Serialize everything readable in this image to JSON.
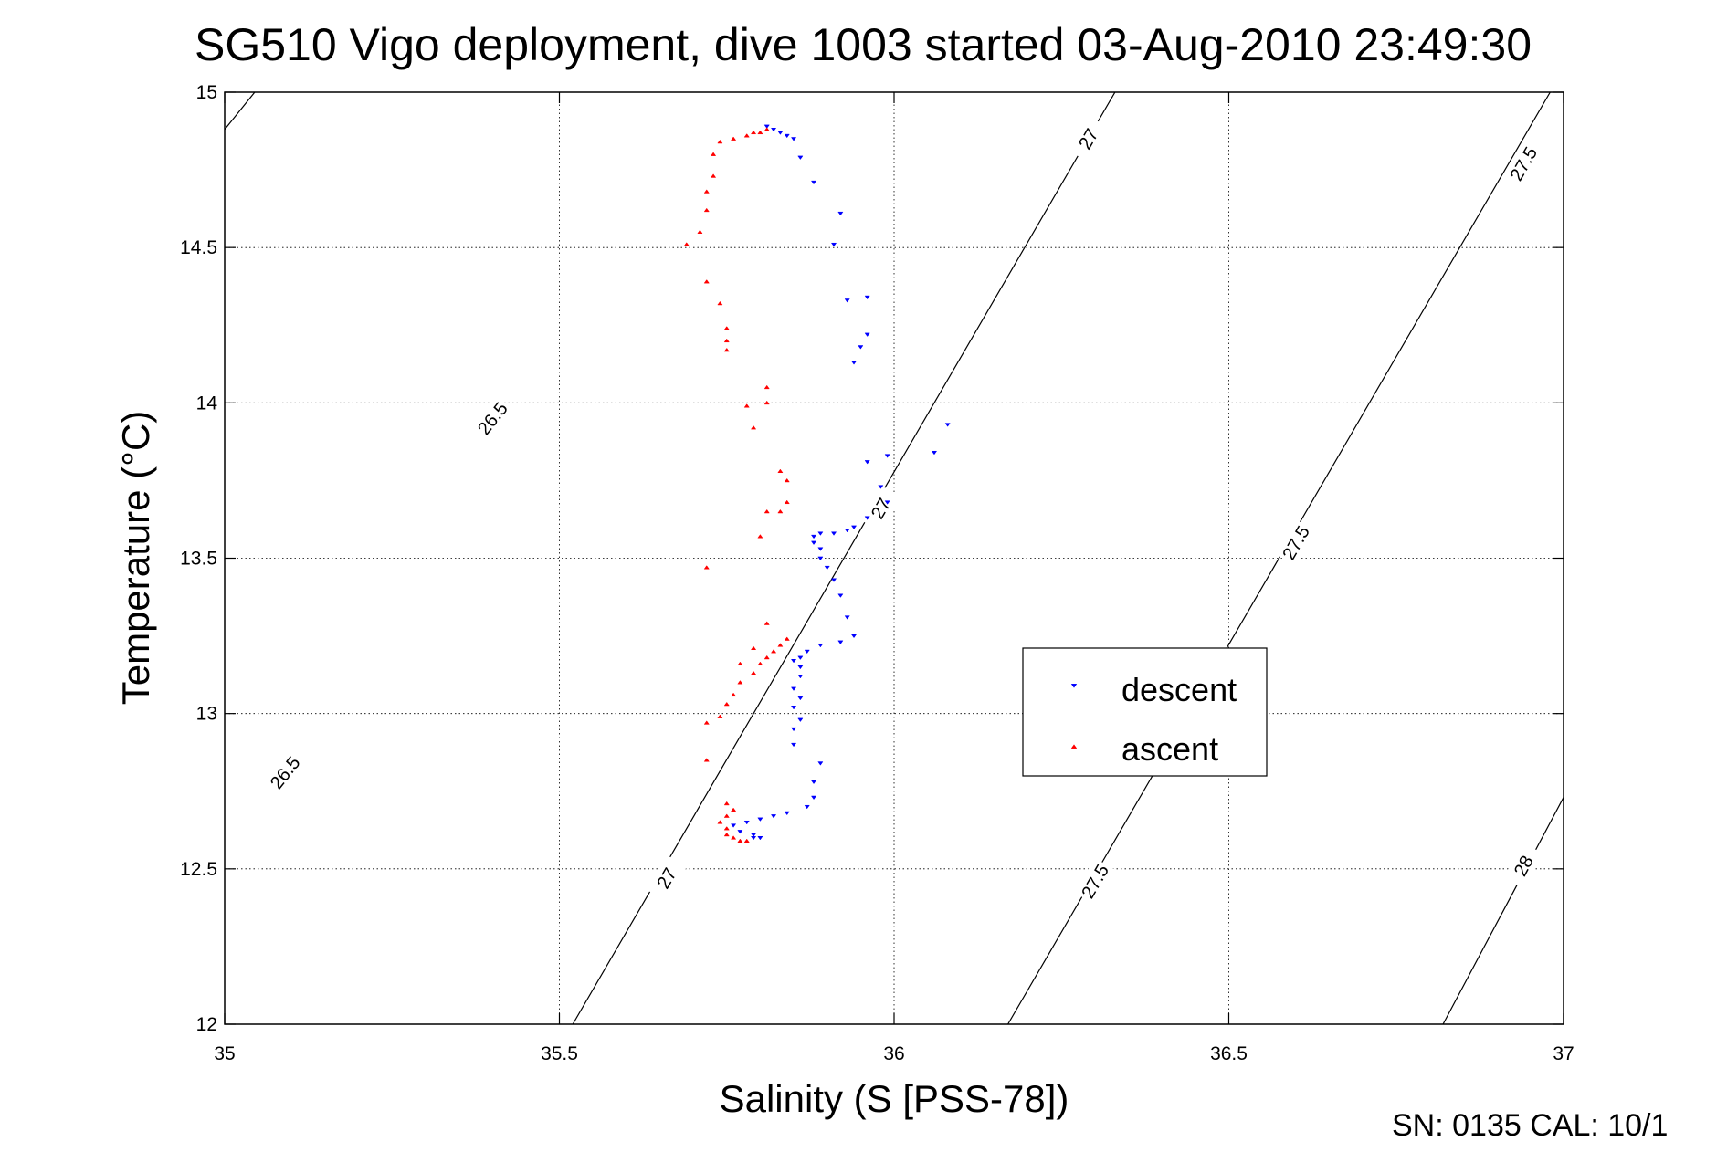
{
  "chart_data": {
    "type": "scatter",
    "title": "SG510 Vigo deployment, dive 1003 started 03-Aug-2010 23:49:30",
    "xlabel": "Salinity (S [PSS-78])",
    "ylabel": "Temperature (°C)",
    "xlim": [
      35,
      37
    ],
    "ylim": [
      12,
      15
    ],
    "xticks": [
      "35",
      "35.5",
      "36",
      "36.5",
      "37"
    ],
    "yticks": [
      "12",
      "12.5",
      "13",
      "13.5",
      "14",
      "14.5",
      "15"
    ],
    "grid": true,
    "legend_position": "right-center",
    "footer": "SN: 0135  CAL: 10/1",
    "colors": {
      "descent": "#0000ff",
      "ascent": "#ff0000",
      "contour": "#000000"
    },
    "contours": [
      {
        "level": "26.5",
        "points": [
          [
            35.0,
            14.88
          ],
          [
            35.52,
            16.27
          ]
        ],
        "labels": [
          [
            35.4,
            13.95
          ],
          [
            35.09,
            12.81
          ]
        ]
      },
      {
        "level": "27",
        "points": [
          [
            35.52,
            12.0
          ],
          [
            36.33,
            15.0
          ]
        ],
        "labels": [
          [
            35.98,
            13.66
          ],
          [
            35.66,
            12.47
          ],
          [
            36.29,
            14.85
          ]
        ]
      },
      {
        "level": "27.5",
        "points": [
          [
            36.17,
            12.0
          ],
          [
            36.98,
            15.0
          ]
        ],
        "labels": [
          [
            36.6,
            13.55
          ],
          [
            36.3,
            12.46
          ],
          [
            36.94,
            14.77
          ]
        ]
      },
      {
        "level": "28",
        "points": [
          [
            36.82,
            12.0
          ],
          [
            37.0,
            12.73
          ]
        ],
        "labels": [
          [
            36.94,
            12.51
          ]
        ]
      }
    ],
    "series": [
      {
        "name": "descent",
        "marker": "triangle-down",
        "points": [
          [
            35.81,
            14.89
          ],
          [
            35.82,
            14.88
          ],
          [
            35.83,
            14.87
          ],
          [
            35.84,
            14.86
          ],
          [
            35.85,
            14.85
          ],
          [
            35.86,
            14.79
          ],
          [
            35.88,
            14.71
          ],
          [
            35.92,
            14.61
          ],
          [
            35.91,
            14.51
          ],
          [
            35.96,
            14.34
          ],
          [
            35.93,
            14.33
          ],
          [
            35.96,
            14.22
          ],
          [
            35.95,
            14.18
          ],
          [
            35.94,
            14.13
          ],
          [
            36.08,
            13.93
          ],
          [
            36.06,
            13.84
          ],
          [
            35.99,
            13.83
          ],
          [
            35.96,
            13.81
          ],
          [
            35.98,
            13.73
          ],
          [
            35.99,
            13.68
          ],
          [
            35.96,
            13.63
          ],
          [
            35.94,
            13.6
          ],
          [
            35.93,
            13.59
          ],
          [
            35.91,
            13.58
          ],
          [
            35.89,
            13.58
          ],
          [
            35.88,
            13.57
          ],
          [
            35.88,
            13.55
          ],
          [
            35.89,
            13.53
          ],
          [
            35.89,
            13.5
          ],
          [
            35.9,
            13.47
          ],
          [
            35.91,
            13.43
          ],
          [
            35.92,
            13.38
          ],
          [
            35.93,
            13.31
          ],
          [
            35.94,
            13.25
          ],
          [
            35.92,
            13.23
          ],
          [
            35.89,
            13.22
          ],
          [
            35.87,
            13.2
          ],
          [
            35.86,
            13.18
          ],
          [
            35.85,
            13.17
          ],
          [
            35.86,
            13.15
          ],
          [
            35.86,
            13.12
          ],
          [
            35.85,
            13.08
          ],
          [
            35.86,
            13.05
          ],
          [
            35.85,
            13.02
          ],
          [
            35.86,
            12.98
          ],
          [
            35.85,
            12.95
          ],
          [
            35.85,
            12.9
          ],
          [
            35.89,
            12.84
          ],
          [
            35.88,
            12.78
          ],
          [
            35.88,
            12.73
          ],
          [
            35.87,
            12.7
          ],
          [
            35.84,
            12.68
          ],
          [
            35.82,
            12.67
          ],
          [
            35.8,
            12.66
          ],
          [
            35.78,
            12.65
          ],
          [
            35.76,
            12.64
          ],
          [
            35.77,
            12.62
          ],
          [
            35.79,
            12.61
          ],
          [
            35.8,
            12.6
          ],
          [
            35.79,
            12.6
          ]
        ]
      },
      {
        "name": "ascent",
        "marker": "triangle-up",
        "points": [
          [
            35.78,
            12.59
          ],
          [
            35.77,
            12.59
          ],
          [
            35.76,
            12.6
          ],
          [
            35.75,
            12.61
          ],
          [
            35.75,
            12.63
          ],
          [
            35.74,
            12.65
          ],
          [
            35.75,
            12.67
          ],
          [
            35.76,
            12.69
          ],
          [
            35.75,
            12.71
          ],
          [
            35.72,
            12.85
          ],
          [
            35.72,
            12.97
          ],
          [
            35.74,
            12.99
          ],
          [
            35.75,
            13.03
          ],
          [
            35.76,
            13.06
          ],
          [
            35.77,
            13.1
          ],
          [
            35.79,
            13.13
          ],
          [
            35.8,
            13.16
          ],
          [
            35.81,
            13.18
          ],
          [
            35.82,
            13.2
          ],
          [
            35.83,
            13.22
          ],
          [
            35.84,
            13.24
          ],
          [
            35.81,
            13.29
          ],
          [
            35.79,
            13.21
          ],
          [
            35.77,
            13.16
          ],
          [
            35.72,
            13.47
          ],
          [
            35.8,
            13.57
          ],
          [
            35.83,
            13.65
          ],
          [
            35.84,
            13.68
          ],
          [
            35.81,
            13.65
          ],
          [
            35.84,
            13.75
          ],
          [
            35.83,
            13.78
          ],
          [
            35.79,
            13.92
          ],
          [
            35.78,
            13.99
          ],
          [
            35.81,
            14.0
          ],
          [
            35.81,
            14.05
          ],
          [
            35.75,
            14.17
          ],
          [
            35.75,
            14.2
          ],
          [
            35.75,
            14.24
          ],
          [
            35.74,
            14.32
          ],
          [
            35.72,
            14.39
          ],
          [
            35.69,
            14.51
          ],
          [
            35.71,
            14.55
          ],
          [
            35.72,
            14.62
          ],
          [
            35.72,
            14.68
          ],
          [
            35.73,
            14.73
          ],
          [
            35.73,
            14.8
          ],
          [
            35.74,
            14.84
          ],
          [
            35.76,
            14.85
          ],
          [
            35.78,
            14.86
          ],
          [
            35.79,
            14.87
          ],
          [
            35.8,
            14.87
          ],
          [
            35.81,
            14.88
          ]
        ]
      }
    ]
  }
}
